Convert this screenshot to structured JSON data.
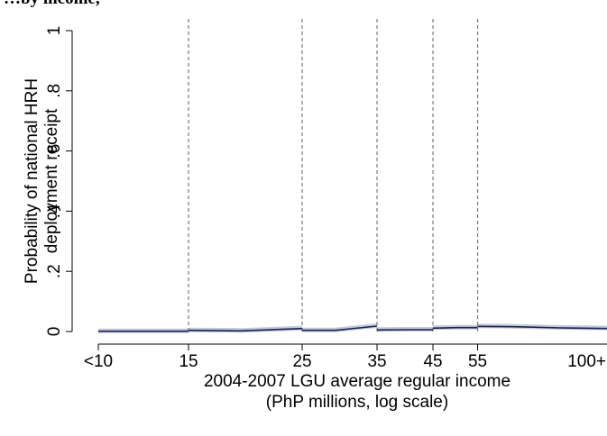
{
  "page": {
    "header_fragment": "…by income,"
  },
  "chart_data": {
    "type": "line",
    "title": "",
    "xlabel": "2004-2007 LGU average regular income",
    "xlabel_line2": "(PhP millions, log scale)",
    "ylabel": "Probability of national HRH",
    "ylabel_line2": "deployment receipt",
    "x_scale": "log",
    "x_ticks": [
      {
        "value": 10,
        "label": "<10"
      },
      {
        "value": 15,
        "label": "15"
      },
      {
        "value": 25,
        "label": "25"
      },
      {
        "value": 35,
        "label": "35"
      },
      {
        "value": 45,
        "label": "45"
      },
      {
        "value": 55,
        "label": "55"
      },
      {
        "value": 100,
        "label": "100+"
      }
    ],
    "y_ticks": [
      {
        "value": 0,
        "label": "0"
      },
      {
        "value": 0.2,
        "label": ".2"
      },
      {
        "value": 0.4,
        "label": ".4"
      },
      {
        "value": 0.6,
        "label": ".6"
      },
      {
        "value": 0.8,
        "label": ".8"
      },
      {
        "value": 1,
        "label": "1"
      }
    ],
    "xlim": [
      10,
      100
    ],
    "ylim": [
      0,
      1
    ],
    "cutoffs": [
      15,
      25,
      35,
      45,
      55
    ],
    "grid": false,
    "colors": {
      "line": "#1a2352",
      "band": "#b8bfd0",
      "cutoff": "#7a7a7a"
    },
    "series": [
      {
        "segments": [
          {
            "x": [
              10,
              15
            ],
            "y": [
              0.001,
              0.001
            ]
          },
          {
            "x": [
              15,
              19,
              25
            ],
            "y": [
              0.004,
              0.002,
              0.01
            ]
          },
          {
            "x": [
              25,
              29,
              35
            ],
            "y": [
              0.004,
              0.004,
              0.018
            ]
          },
          {
            "x": [
              35,
              40,
              45
            ],
            "y": [
              0.005,
              0.006,
              0.006
            ]
          },
          {
            "x": [
              45,
              50,
              55
            ],
            "y": [
              0.011,
              0.013,
              0.013
            ]
          },
          {
            "x": [
              55,
              65,
              80,
              100
            ],
            "y": [
              0.017,
              0.016,
              0.012,
              0.01
            ]
          }
        ]
      }
    ]
  }
}
